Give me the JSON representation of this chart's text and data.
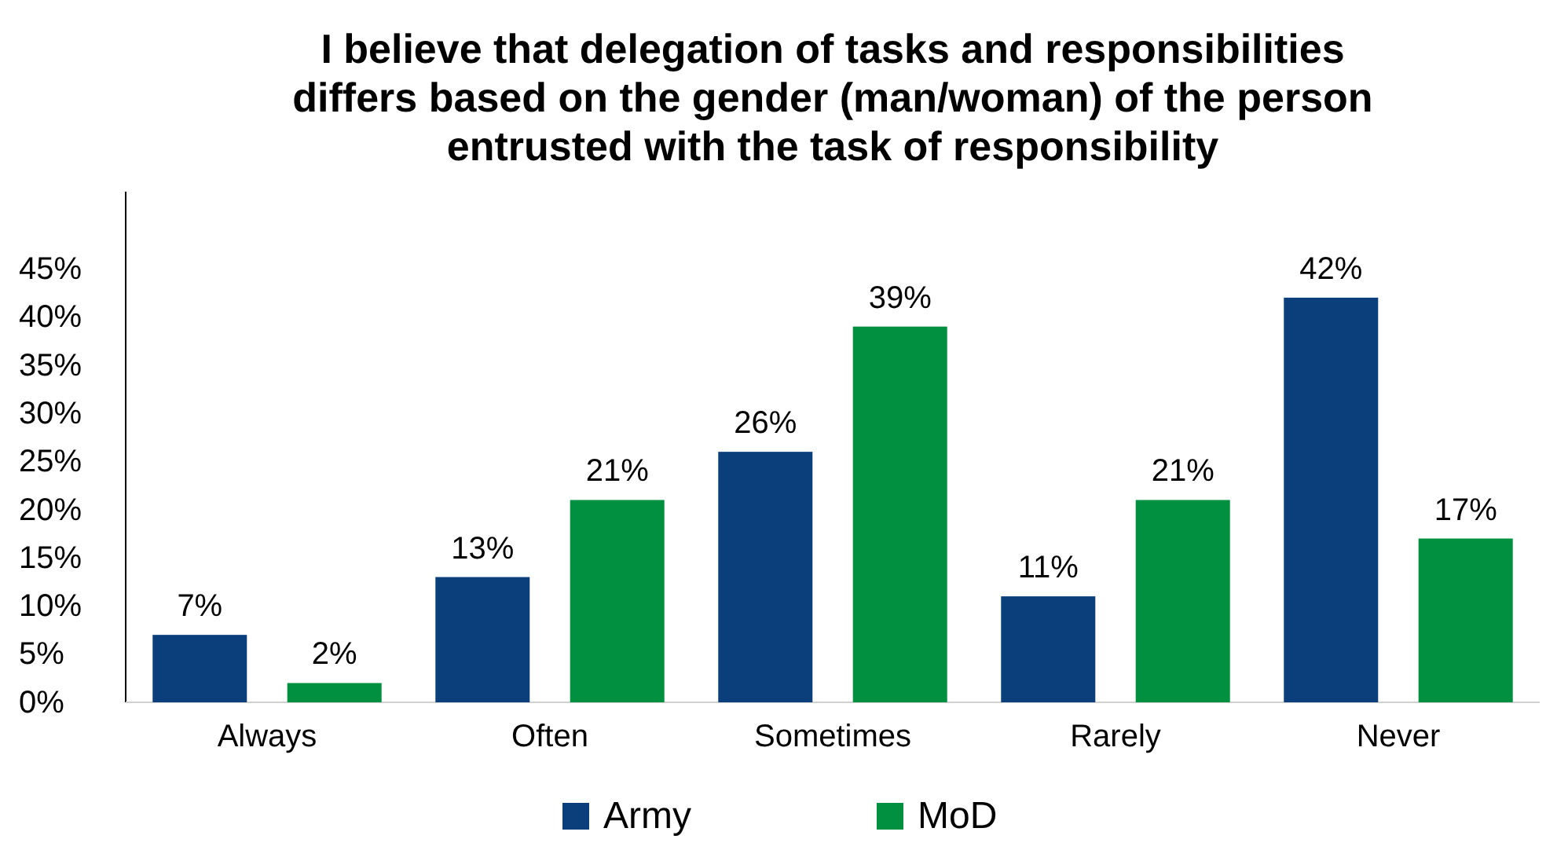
{
  "chart_data": {
    "type": "bar",
    "title": "I believe that delegation of tasks and responsibilities differs based on the gender (man/woman) of the person entrusted with the task of responsibility",
    "categories": [
      "Always",
      "Often",
      "Sometimes",
      "Rarely",
      "Never"
    ],
    "series": [
      {
        "name": "Army",
        "color": "#0b3f7c",
        "values": [
          7,
          13,
          26,
          11,
          42
        ],
        "value_labels": [
          "7%",
          "13%",
          "26%",
          "11%",
          "42%"
        ]
      },
      {
        "name": "MoD",
        "color": "#00903f",
        "values": [
          2,
          21,
          39,
          21,
          17
        ],
        "value_labels": [
          "2%",
          "21%",
          "39%",
          "21%",
          "17%"
        ]
      }
    ],
    "ylim": [
      0,
      53
    ],
    "yticks": [
      {
        "value": 0,
        "label": "0%"
      },
      {
        "value": 5,
        "label": "5%"
      },
      {
        "value": 10,
        "label": "10%"
      },
      {
        "value": 15,
        "label": "15%"
      },
      {
        "value": 20,
        "label": "20%"
      },
      {
        "value": 25,
        "label": "25%"
      },
      {
        "value": 30,
        "label": "30%"
      },
      {
        "value": 35,
        "label": "35%"
      },
      {
        "value": 40,
        "label": "40%"
      },
      {
        "value": 45,
        "label": "45%"
      }
    ],
    "grid": false,
    "legend": "bottom"
  }
}
